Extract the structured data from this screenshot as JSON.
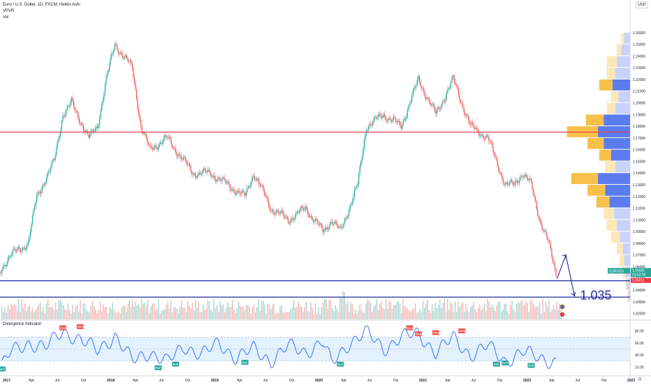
{
  "header": {
    "title": "Euro / U.S. Dollar, 1D, FXCM, Heikin Ashi",
    "line2": "VPVR",
    "line3": "Vol"
  },
  "currency_button": "USD",
  "indicator_title": "Divergence Indicator",
  "price_badges": {
    "symbol": "EURUSD",
    "last_price": "1.05685",
    "countdown": "01:52:56",
    "level": "1.05211"
  },
  "annotation": "1.035",
  "colors": {
    "bull": "#26a69a",
    "bear": "#ef5350",
    "vp_up": "#5b7cf0",
    "vp_down": "#f7c04a",
    "red_line": "#f23645",
    "blue_line": "#1e2a9c",
    "osc_line": "#2962ff",
    "band_fill": "#e3f2fd"
  },
  "chart_data": {
    "type": "line",
    "title": "Euro / U.S. Dollar, 1D, FXCM, Heikin Ashi",
    "x_tick_labels": [
      "2017",
      "Apr",
      "Jul",
      "Oct",
      "2018",
      "Apr",
      "Jul",
      "Oct",
      "2019",
      "Apr",
      "Jul",
      "Oct",
      "2020",
      "Apr",
      "Jul",
      "Oct",
      "2021",
      "Apr",
      "Jul",
      "Oct",
      "2022",
      "Apr",
      "Jul",
      "Oct",
      "2023"
    ],
    "y_tick_labels": [
      "1.26000",
      "1.25000",
      "1.24000",
      "1.23000",
      "1.22000",
      "1.21000",
      "1.20000",
      "1.19000",
      "1.18000",
      "1.17000",
      "1.16000",
      "1.15000",
      "1.14000",
      "1.13000",
      "1.12000",
      "1.11000",
      "1.10000",
      "1.09000",
      "1.08000",
      "1.07000",
      "1.06000",
      "1.05000",
      "1.04000",
      "1.03000",
      "1.02000"
    ],
    "ylim": [
      1.015,
      1.27
    ],
    "price_series": {
      "name": "EURUSD",
      "x": [
        "2016-12",
        "2017-01",
        "2017-02",
        "2017-04",
        "2017-05",
        "2017-07",
        "2017-08",
        "2017-09",
        "2017-11",
        "2017-12",
        "2018-01",
        "2018-02",
        "2018-04",
        "2018-05",
        "2018-06",
        "2018-08",
        "2018-09",
        "2018-11",
        "2019-01",
        "2019-03",
        "2019-05",
        "2019-06",
        "2019-08",
        "2019-10",
        "2019-12",
        "2020-02",
        "2020-03",
        "2020-04",
        "2020-06",
        "2020-07",
        "2020-09",
        "2020-11",
        "2021-01",
        "2021-03",
        "2021-05",
        "2021-07",
        "2021-09",
        "2021-11",
        "2021-12",
        "2022-01",
        "2022-02",
        "2022-03",
        "2022-04",
        "2022-05"
      ],
      "y": [
        1.04,
        1.06,
        1.07,
        1.08,
        1.12,
        1.15,
        1.19,
        1.2,
        1.17,
        1.18,
        1.22,
        1.25,
        1.23,
        1.18,
        1.16,
        1.17,
        1.16,
        1.14,
        1.14,
        1.13,
        1.12,
        1.14,
        1.11,
        1.1,
        1.11,
        1.09,
        1.1,
        1.09,
        1.13,
        1.18,
        1.19,
        1.18,
        1.22,
        1.19,
        1.22,
        1.18,
        1.17,
        1.13,
        1.13,
        1.14,
        1.13,
        1.1,
        1.08,
        1.05
      ]
    },
    "horizontal_lines": [
      {
        "name": "resistance",
        "y": 1.175
      },
      {
        "name": "support 1",
        "y": 1.048
      },
      {
        "name": "support 2",
        "y": 1.034
      }
    ],
    "projection": {
      "x": [
        "2022-05",
        "2022-06",
        "2022-07"
      ],
      "y": [
        1.05,
        1.07,
        1.035
      ]
    },
    "volume_profile": {
      "type": "bar",
      "orientation": "horizontal",
      "price_levels": [
        1.255,
        1.245,
        1.235,
        1.225,
        1.215,
        1.205,
        1.195,
        1.185,
        1.175,
        1.165,
        1.155,
        1.145,
        1.135,
        1.125,
        1.115,
        1.105,
        1.095,
        1.085,
        1.075,
        1.065,
        1.055,
        1.045,
        1.035
      ],
      "series": [
        {
          "name": "up volume",
          "values": [
            4,
            6,
            9,
            10,
            12,
            8,
            10,
            18,
            22,
            18,
            13,
            10,
            22,
            17,
            14,
            11,
            9,
            7,
            5,
            4,
            3,
            2,
            1
          ]
        },
        {
          "name": "down volume",
          "values": [
            2,
            3,
            7,
            6,
            9,
            5,
            6,
            12,
            21,
            11,
            8,
            7,
            18,
            12,
            9,
            7,
            7,
            6,
            4,
            3,
            2,
            1,
            1
          ]
        }
      ]
    },
    "volume_series": {
      "type": "bar",
      "note": "daily volume bars at bottom of price pane"
    },
    "oscillator": {
      "type": "line",
      "y_tick_labels": [
        "80.00",
        "60.00",
        "40.00",
        "20.00"
      ],
      "ylim": [
        10,
        90
      ],
      "band": [
        30,
        70
      ],
      "x": [
        "2017-01",
        "2017-02",
        "2017-04",
        "2017-06",
        "2017-08",
        "2017-10",
        "2017-12",
        "2018-02",
        "2018-04",
        "2018-06",
        "2018-08",
        "2018-10",
        "2018-12",
        "2019-02",
        "2019-04",
        "2019-06",
        "2019-08",
        "2019-10",
        "2019-12",
        "2020-02",
        "2020-03",
        "2020-05",
        "2020-07",
        "2020-09",
        "2020-11",
        "2021-01",
        "2021-03",
        "2021-05",
        "2021-07",
        "2021-09",
        "2021-11",
        "2022-01",
        "2022-03",
        "2022-05"
      ],
      "y": [
        22,
        45,
        60,
        52,
        80,
        65,
        48,
        72,
        30,
        45,
        28,
        55,
        40,
        60,
        35,
        50,
        30,
        55,
        45,
        62,
        25,
        60,
        78,
        50,
        70,
        75,
        45,
        68,
        40,
        55,
        30,
        45,
        35,
        28
      ],
      "markers": [
        {
          "label": "Bull",
          "x": "2017-01",
          "y": 22,
          "type": "bull"
        },
        {
          "label": "Bear",
          "x": "2017-08",
          "y": 80,
          "type": "bear"
        },
        {
          "label": "Bear",
          "x": "2017-10",
          "y": 82,
          "type": "bear"
        },
        {
          "label": "Bull",
          "x": "2018-07",
          "y": 24,
          "type": "bull"
        },
        {
          "label": "Bull",
          "x": "2018-09",
          "y": 30,
          "type": "bull"
        },
        {
          "label": "Bull",
          "x": "2019-05",
          "y": 33,
          "type": "bull"
        },
        {
          "label": "Bull",
          "x": "2020-04",
          "y": 30,
          "type": "bull"
        },
        {
          "label": "Bear",
          "x": "2020-12",
          "y": 80,
          "type": "bear"
        },
        {
          "label": "Bear",
          "x": "2021-01",
          "y": 70,
          "type": "bear"
        },
        {
          "label": "Bear",
          "x": "2021-03",
          "y": 72,
          "type": "bear"
        },
        {
          "label": "Bear",
          "x": "2021-06",
          "y": 75,
          "type": "bear"
        },
        {
          "label": "Bull",
          "x": "2021-10",
          "y": 30,
          "type": "bull"
        },
        {
          "label": "Bull",
          "x": "2021-11",
          "y": 32,
          "type": "bull"
        },
        {
          "label": "Bull",
          "x": "2022-02",
          "y": 28,
          "type": "bull"
        }
      ]
    }
  }
}
